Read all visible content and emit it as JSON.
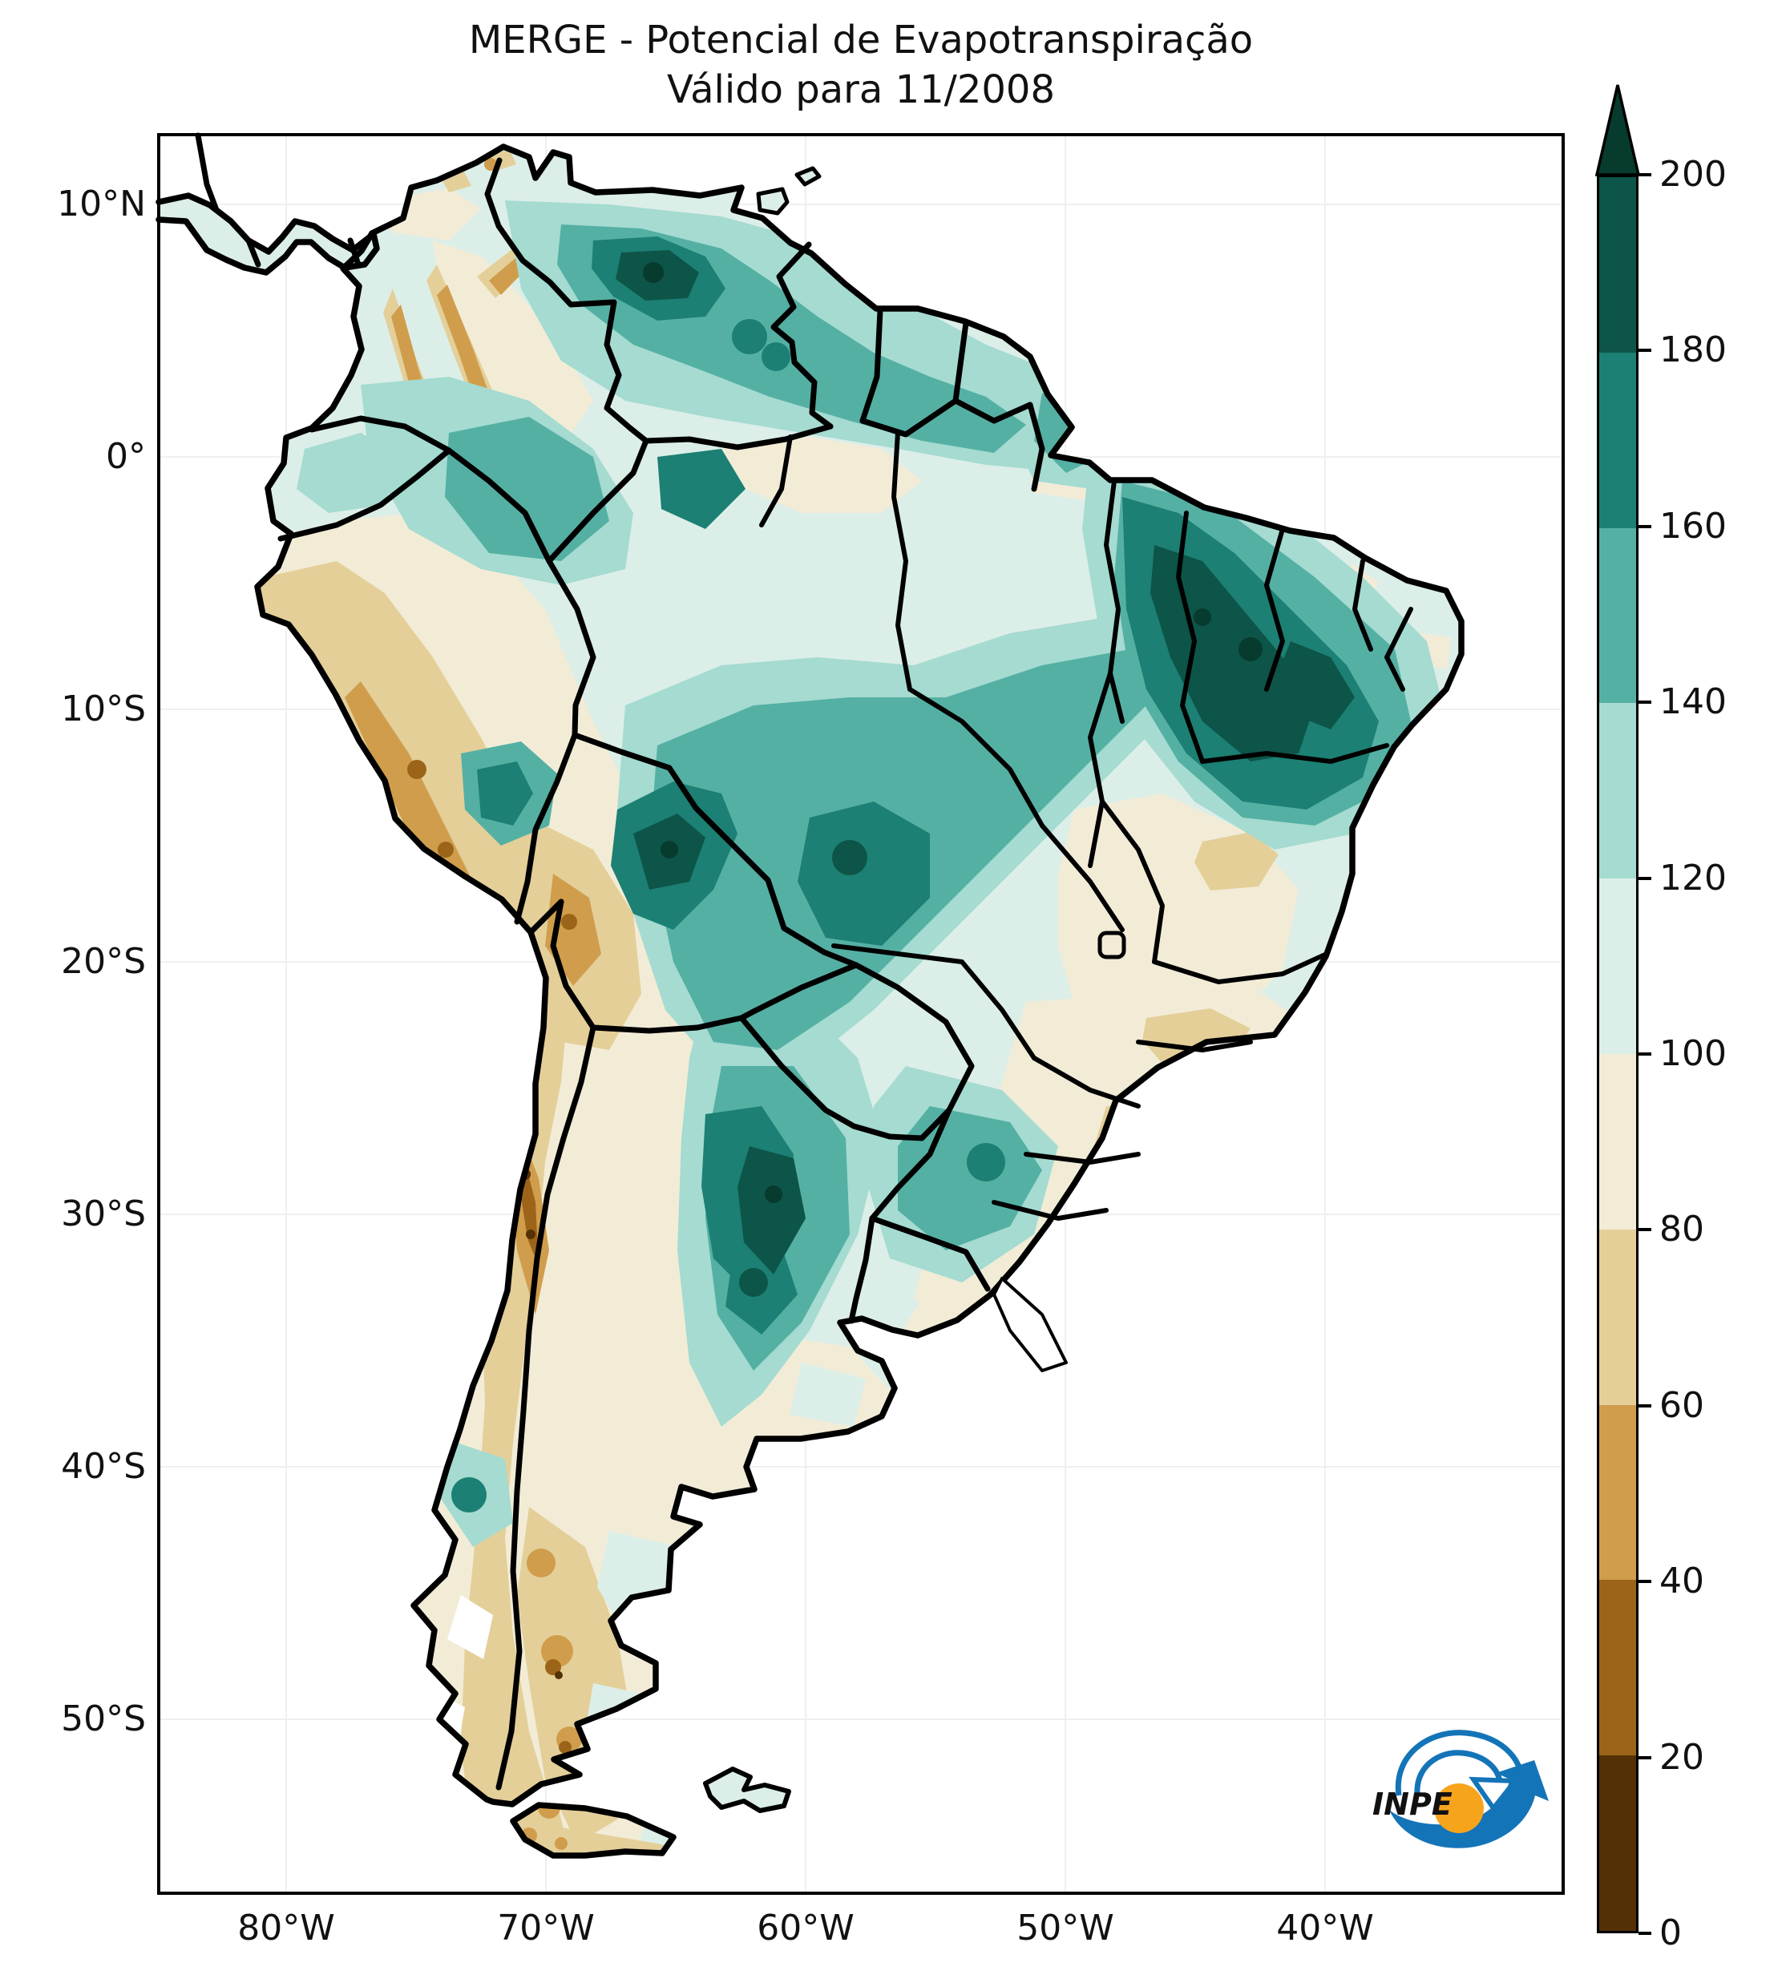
{
  "title": {
    "line1": "MERGE - Potencial de Evapotranspiração",
    "line2": "Válido para 11/2008"
  },
  "axes": {
    "lat_ticks": [
      "10°N",
      "0°",
      "10°S",
      "20°S",
      "30°S",
      "40°S",
      "50°S"
    ],
    "lon_ticks": [
      "80°W",
      "70°W",
      "60°W",
      "50°W",
      "40°W"
    ]
  },
  "colorbar": {
    "tick_labels": [
      "200",
      "180",
      "160",
      "140",
      "120",
      "100",
      "80",
      "60",
      "40",
      "20",
      "0"
    ],
    "levels": [
      0,
      20,
      40,
      60,
      80,
      100,
      120,
      140,
      160,
      180,
      200
    ],
    "bands_top_to_bottom": [
      {
        "range": "180-200",
        "color": "#0d5548"
      },
      {
        "range": "160-180",
        "color": "#1c8074"
      },
      {
        "range": "140-160",
        "color": "#55b0a4"
      },
      {
        "range": "120-140",
        "color": "#a5dbd1"
      },
      {
        "range": "100-120",
        "color": "#dceee8"
      },
      {
        "range": "80-100",
        "color": "#f2ecd7"
      },
      {
        "range": "60-80",
        "color": "#e4cf99"
      },
      {
        "range": "40-60",
        "color": "#d09d4c"
      },
      {
        "range": "20-40",
        "color": "#9c6419"
      },
      {
        "range": "0-20",
        "color": "#543005"
      }
    ],
    "extend_max_color": "#073b2e",
    "outline_color": "#000000"
  },
  "logo": {
    "text": "INPE",
    "blue": "#1474b8",
    "orange": "#f7a41d"
  },
  "chart_data": {
    "type": "heatmap",
    "title": "MERGE - Potencial de Evapotranspiração",
    "subtitle": "Válido para 11/2008",
    "colorbar_levels": [
      0,
      20,
      40,
      60,
      80,
      100,
      120,
      140,
      160,
      180,
      200
    ],
    "colorbar_extend": "max",
    "x_tick_labels": [
      "80°W",
      "70°W",
      "60°W",
      "50°W",
      "40°W"
    ],
    "y_tick_labels": [
      "10°N",
      "0°",
      "10°S",
      "20°S",
      "30°S",
      "40°S",
      "50°S"
    ],
    "legend_position": "right"
  }
}
